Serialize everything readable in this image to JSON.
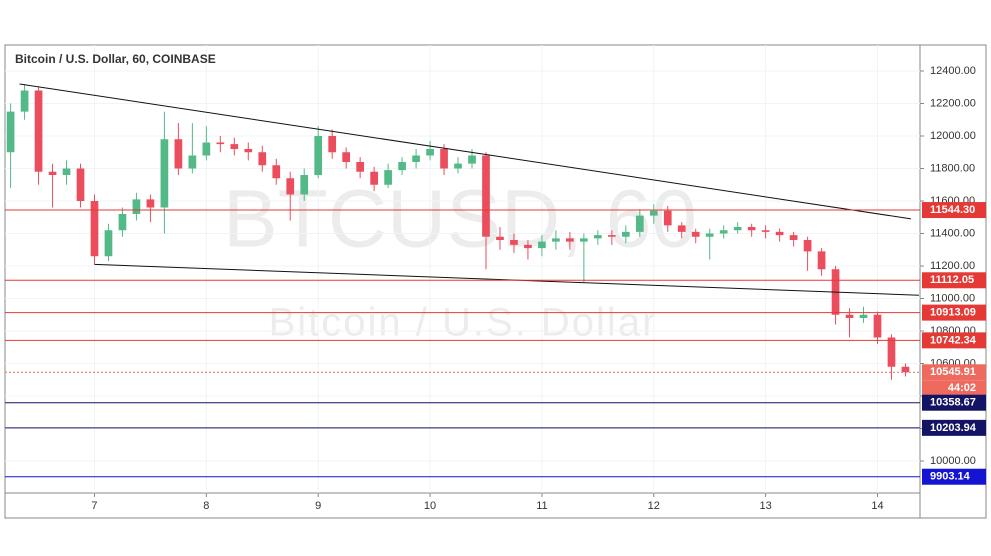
{
  "chart_data": {
    "type": "candlestick",
    "title": "Bitcoin / U.S. Dollar, 60, COINBASE",
    "watermark": "BTCUSD, 60",
    "watermark_subtitle": "Bitcoin / U.S. Dollar",
    "x": [
      6.25,
      6.375,
      6.5,
      6.625,
      6.75,
      6.875,
      7,
      7.125,
      7.25,
      7.375,
      7.5,
      7.625,
      7.75,
      7.875,
      8,
      8.125,
      8.25,
      8.375,
      8.5,
      8.625,
      8.75,
      8.875,
      9,
      9.125,
      9.25,
      9.375,
      9.5,
      9.625,
      9.75,
      9.875,
      10,
      10.125,
      10.25,
      10.375,
      10.5,
      10.625,
      10.75,
      10.875,
      11,
      11.125,
      11.25,
      11.375,
      11.5,
      11.625,
      11.75,
      11.875,
      12,
      12.125,
      12.25,
      12.375,
      12.5,
      12.625,
      12.75,
      12.875,
      13,
      13.125,
      13.25,
      13.375,
      13.5,
      13.625,
      13.75,
      13.875,
      14,
      14.125,
      14.25
    ],
    "open": [
      11900,
      12150,
      12280,
      11780,
      11760,
      11800,
      11600,
      11260,
      11420,
      11520,
      11610,
      11560,
      11980,
      11800,
      11880,
      11960,
      11950,
      11920,
      11900,
      11820,
      11740,
      11640,
      11760,
      12000,
      11900,
      11840,
      11780,
      11700,
      11790,
      11840,
      11880,
      11920,
      11800,
      11830,
      11880,
      11380,
      11360,
      11330,
      11310,
      11350,
      11370,
      11350,
      11370,
      11390,
      11380,
      11410,
      11510,
      11540,
      11450,
      11410,
      11380,
      11400,
      11420,
      11440,
      11420,
      11410,
      11390,
      11360,
      11290,
      11180,
      10900,
      10880,
      10900,
      10760,
      10580
    ],
    "high": [
      12200,
      12320,
      12300,
      11830,
      11850,
      11830,
      11640,
      11460,
      11560,
      11650,
      11640,
      12150,
      12080,
      12080,
      12060,
      12000,
      11990,
      11960,
      11940,
      11860,
      11780,
      11800,
      12060,
      12040,
      11930,
      11870,
      11810,
      11830,
      11870,
      11920,
      11970,
      11950,
      11870,
      11920,
      11900,
      11440,
      11400,
      11360,
      11390,
      11420,
      11410,
      11400,
      11420,
      11420,
      11450,
      11550,
      11580,
      11570,
      11470,
      11430,
      11430,
      11450,
      11470,
      11460,
      11450,
      11430,
      11410,
      11380,
      11310,
      11200,
      10940,
      10950,
      10920,
      10780,
      10600
    ],
    "low": [
      11680,
      12100,
      11700,
      11560,
      11700,
      11560,
      11210,
      11230,
      11380,
      11480,
      11470,
      11400,
      11760,
      11770,
      11850,
      11900,
      11880,
      11850,
      11780,
      11700,
      11480,
      11600,
      11740,
      11860,
      11800,
      11740,
      11660,
      11680,
      11760,
      11800,
      11850,
      11760,
      11770,
      11800,
      11180,
      11300,
      11280,
      11240,
      11260,
      11300,
      11300,
      11100,
      11330,
      11330,
      11340,
      11380,
      11460,
      11410,
      11370,
      11340,
      11240,
      11370,
      11400,
      11380,
      11370,
      11350,
      11320,
      11170,
      11140,
      10840,
      10760,
      10850,
      10720,
      10500,
      10520
    ],
    "close": [
      12150,
      12280,
      11780,
      11760,
      11800,
      11600,
      11260,
      11420,
      11520,
      11610,
      11560,
      11980,
      11800,
      11880,
      11960,
      11950,
      11920,
      11900,
      11820,
      11740,
      11640,
      11760,
      12000,
      11900,
      11840,
      11780,
      11700,
      11790,
      11840,
      11880,
      11920,
      11800,
      11830,
      11880,
      11380,
      11360,
      11330,
      11310,
      11350,
      11370,
      11350,
      11370,
      11390,
      11380,
      11410,
      11510,
      11540,
      11450,
      11410,
      11380,
      11400,
      11420,
      11440,
      11420,
      11410,
      11390,
      11360,
      11290,
      11180,
      10900,
      10880,
      10900,
      10760,
      10580,
      10546
    ],
    "up_color": "#53b987",
    "down_color": "#eb4d5c",
    "xlim": [
      6.2,
      14.38
    ],
    "xticks": [
      7,
      8,
      9,
      10,
      11,
      12,
      13,
      14
    ],
    "ylim": [
      9803,
      12560
    ],
    "yticks": [
      {
        "value": 10000,
        "label": "10000.00"
      },
      {
        "value": 10200,
        "label": "10200.00"
      },
      {
        "value": 10400,
        "label": "10400.00"
      },
      {
        "value": 10600,
        "label": "10600.00"
      },
      {
        "value": 10800,
        "label": "10800.00"
      },
      {
        "value": 11000,
        "label": "11000.00"
      },
      {
        "value": 11200,
        "label": "11200.00"
      },
      {
        "value": 11400,
        "label": "11400.00"
      },
      {
        "value": 11600,
        "label": "11600.00"
      },
      {
        "value": 11800,
        "label": "11800.00"
      },
      {
        "value": 12000,
        "label": "12000.00"
      },
      {
        "value": 12200,
        "label": "12200.00"
      },
      {
        "value": 12400,
        "label": "12400.00"
      }
    ],
    "trend_lines": [
      {
        "x": [
          6.33,
          14.3
        ],
        "y": [
          12320,
          11490
        ]
      },
      {
        "x": [
          7.0,
          14.37
        ],
        "y": [
          11210,
          11020
        ]
      }
    ],
    "levels": [
      {
        "value": 11544.3,
        "label": "11544.30",
        "color": "#e53935",
        "style": "solid"
      },
      {
        "value": 11112.05,
        "label": "11112.05",
        "color": "#e53935",
        "style": "solid"
      },
      {
        "value": 10913.09,
        "label": "10913.09",
        "color": "#e53935",
        "style": "solid"
      },
      {
        "value": 10742.34,
        "label": "10742.34",
        "color": "#e53935",
        "style": "solid"
      },
      {
        "value": 10545.91,
        "label": "10545.91",
        "color": "#ef6a5e",
        "style": "dotted"
      },
      {
        "value": 10358.67,
        "label": "10358.67",
        "color": "#141464",
        "style": "solid"
      },
      {
        "value": 10203.94,
        "label": "10203.94",
        "color": "#141464",
        "style": "solid"
      },
      {
        "value": 9903.14,
        "label": "9903.14",
        "color": "#1414d2",
        "style": "solid"
      }
    ],
    "countdown": "44:02"
  }
}
